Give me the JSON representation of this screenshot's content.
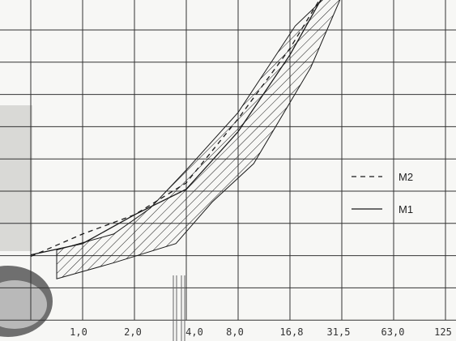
{
  "chart_data": {
    "type": "line",
    "title": "",
    "xlabel": "",
    "ylabel": "",
    "grid": true,
    "legend": "right",
    "x_tick_labels": [
      "1,0",
      "2,0",
      "4,0",
      "8,0",
      "16,8",
      "31,5",
      "63,0",
      "125"
    ],
    "y_range_grid_rows": [
      0,
      10
    ],
    "series": [
      {
        "name": "M2",
        "style": "dashed",
        "x": [
          0,
          1,
          2,
          3,
          4,
          5,
          5.9
        ],
        "y": [
          1.1,
          1.8,
          2.4,
          3.4,
          5.4,
          7.6,
          10.0
        ]
      },
      {
        "name": "M1",
        "style": "solid",
        "x": [
          0,
          1,
          2,
          3,
          4,
          5,
          5.9
        ],
        "y": [
          1.15,
          1.5,
          2.4,
          3.2,
          5.0,
          7.4,
          10.0
        ]
      }
    ],
    "band": {
      "upper_x": [
        0.5,
        1.6,
        2.3,
        3.0,
        4.0,
        5.1,
        6.2
      ],
      "upper_y": [
        1.3,
        1.8,
        2.6,
        3.8,
        5.6,
        8.3,
        10.0
      ],
      "lower_x": [
        0.5,
        1.6,
        2.8,
        3.5,
        4.3,
        5.4,
        6.2
      ],
      "lower_y": [
        0.4,
        0.9,
        1.5,
        2.8,
        4.0,
        7.0,
        10.0
      ]
    },
    "colors": {
      "grid": "#333333",
      "lines": "#1a1a1a",
      "hatch": "#1a1a1a",
      "background": "#f7f7f5"
    }
  }
}
